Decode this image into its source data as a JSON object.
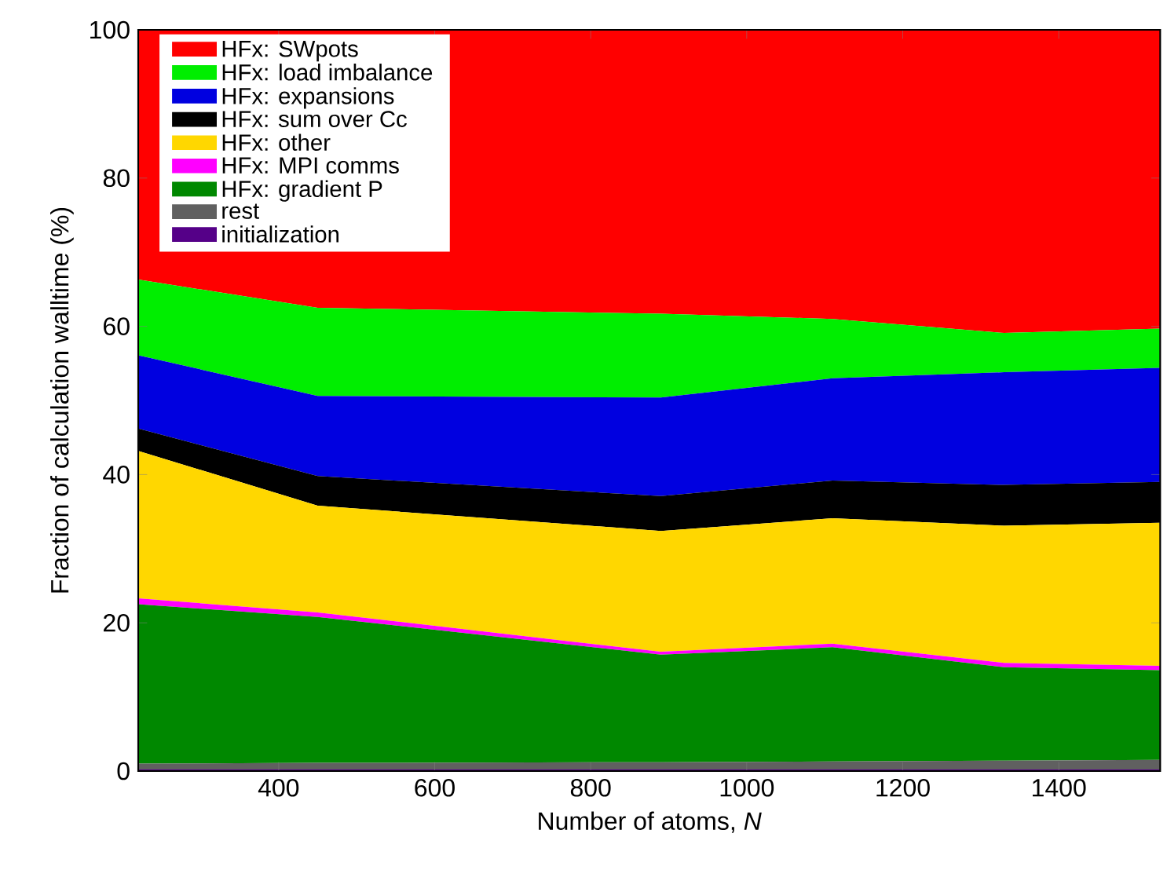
{
  "chart_data": {
    "type": "area",
    "stacked": true,
    "xlabel": "Number of atoms, *N*",
    "ylabel": "Fraction of calculation walltime (%)",
    "x": [
      220,
      450,
      890,
      1110,
      1330,
      1530
    ],
    "series": [
      {
        "name": "initialization",
        "color": "#550088",
        "values": [
          0.2,
          0.2,
          0.2,
          0.2,
          0.2,
          0.2
        ]
      },
      {
        "name": "rest",
        "color": "#606060",
        "values": [
          0.8,
          0.9,
          1.0,
          1.1,
          1.2,
          1.3
        ]
      },
      {
        "name": "HFx: gradient P",
        "color": "#008800",
        "values": [
          21.5,
          19.7,
          14.5,
          15.4,
          12.6,
          12.1
        ]
      },
      {
        "name": "HFx: MPI comms",
        "color": "#ff00ff",
        "values": [
          0.8,
          0.6,
          0.4,
          0.5,
          0.6,
          0.6
        ]
      },
      {
        "name": "HFx: other",
        "color": "#ffd700",
        "values": [
          19.9,
          14.4,
          16.3,
          16.9,
          18.5,
          19.3
        ]
      },
      {
        "name": "HFx: sum over Cc",
        "color": "#000000",
        "values": [
          3.0,
          4.0,
          4.7,
          5.1,
          5.5,
          5.5
        ]
      },
      {
        "name": "HFx: expansions",
        "color": "#0000e0",
        "values": [
          9.9,
          10.8,
          13.3,
          13.8,
          15.2,
          15.4
        ]
      },
      {
        "name": "HFx: load imbalance",
        "color": "#00ee00",
        "values": [
          10.2,
          11.9,
          11.3,
          8.0,
          5.3,
          5.3
        ]
      },
      {
        "name": "HFx: SWpots",
        "color": "#ff0000",
        "values": [
          33.7,
          37.5,
          38.3,
          39.0,
          40.9,
          40.3
        ]
      }
    ],
    "xlim": [
      220,
      1530
    ],
    "ylim": [
      0,
      100
    ],
    "xticks": [
      400,
      600,
      800,
      1000,
      1200,
      1400
    ],
    "yticks": [
      0,
      20,
      40,
      60,
      80,
      100
    ],
    "legend": "top left"
  }
}
